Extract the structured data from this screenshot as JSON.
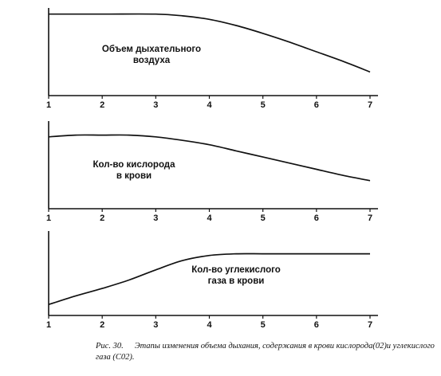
{
  "chart_data": [
    {
      "type": "line",
      "annotation": [
        "Объем дыхательного",
        "воздуха"
      ],
      "x_ticks": [
        "1",
        "2",
        "3",
        "4",
        "5",
        "6",
        "7"
      ],
      "xlim": [
        1,
        7
      ],
      "ylim": [
        0,
        10
      ],
      "series": [
        {
          "x": [
            1,
            2,
            3,
            3.5,
            4,
            4.5,
            5,
            5.5,
            6,
            6.5,
            7
          ],
          "y": [
            9.3,
            9.3,
            9.3,
            9.1,
            8.7,
            8.0,
            7.1,
            6.1,
            5.0,
            3.9,
            2.7
          ]
        }
      ]
    },
    {
      "type": "line",
      "annotation": [
        "Кол-во кислорода",
        "в крови"
      ],
      "x_ticks": [
        "1",
        "2",
        "3",
        "4",
        "5",
        "6",
        "7"
      ],
      "xlim": [
        1,
        7
      ],
      "ylim": [
        0,
        10
      ],
      "series": [
        {
          "x": [
            1,
            1.5,
            2,
            2.5,
            3,
            3.5,
            4,
            4.5,
            5,
            5.5,
            6,
            6.5,
            7
          ],
          "y": [
            8.2,
            8.4,
            8.4,
            8.4,
            8.2,
            7.8,
            7.3,
            6.6,
            5.9,
            5.2,
            4.5,
            3.8,
            3.2
          ]
        }
      ]
    },
    {
      "type": "line",
      "annotation": [
        "Кол-во углекислого",
        "газа в крови"
      ],
      "x_ticks": [
        "1",
        "2",
        "3",
        "4",
        "5",
        "6",
        "7"
      ],
      "xlim": [
        1,
        7
      ],
      "ylim": [
        0,
        10
      ],
      "series": [
        {
          "x": [
            1,
            1.5,
            2,
            2.5,
            3,
            3.5,
            4,
            4.5,
            5,
            5.5,
            6,
            6.5,
            7
          ],
          "y": [
            1.3,
            2.3,
            3.2,
            4.2,
            5.4,
            6.5,
            7.1,
            7.3,
            7.3,
            7.3,
            7.3,
            7.3,
            7.3
          ]
        }
      ]
    }
  ],
  "caption": {
    "number": "Рис. 30.",
    "text": "Этапы изменения объема дыхания, содержания в крови кислорода(02)и углекислого газа (С02)."
  }
}
